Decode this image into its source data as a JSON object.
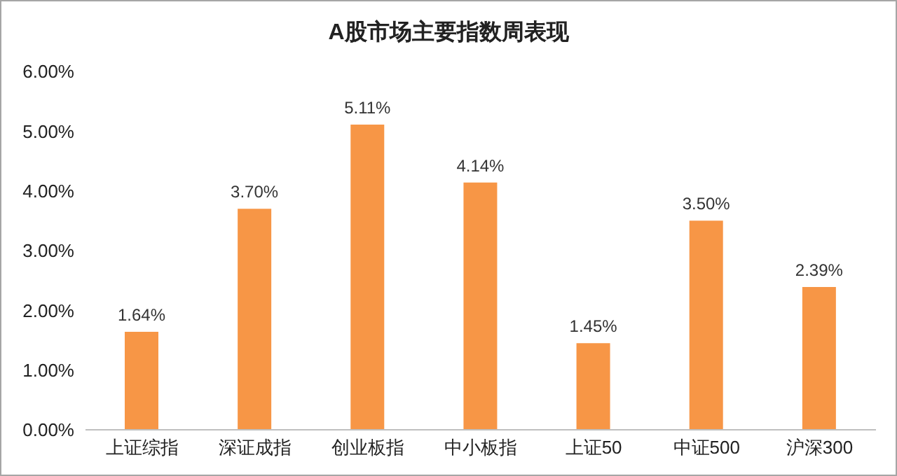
{
  "chart_data": {
    "type": "bar",
    "title": "A股市场主要指数周表现",
    "categories": [
      "上证综指",
      "深证成指",
      "创业板指",
      "中小板指",
      "上证50",
      "中证500",
      "沪深300"
    ],
    "values": [
      1.64,
      3.7,
      5.11,
      4.14,
      1.45,
      3.5,
      2.39
    ],
    "value_labels": [
      "1.64%",
      "3.70%",
      "5.11%",
      "4.14%",
      "1.45%",
      "3.50%",
      "2.39%"
    ],
    "color": "#f79646",
    "ylim": [
      0,
      6
    ],
    "yticks": [
      {
        "value": 0,
        "label": "0.00%"
      },
      {
        "value": 1,
        "label": "1.00%"
      },
      {
        "value": 2,
        "label": "2.00%"
      },
      {
        "value": 3,
        "label": "3.00%"
      },
      {
        "value": 4,
        "label": "4.00%"
      },
      {
        "value": 5,
        "label": "5.00%"
      },
      {
        "value": 6,
        "label": "6.00%"
      }
    ],
    "grid": false,
    "legend": false
  }
}
